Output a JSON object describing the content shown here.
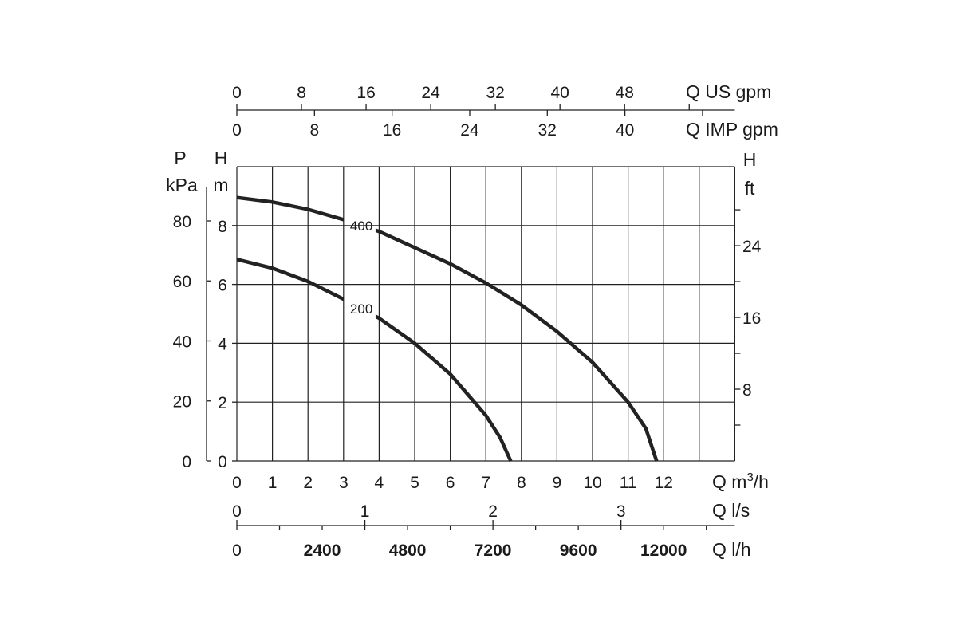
{
  "chart_data": {
    "type": "line",
    "title": "",
    "xlabel": "Q m3/h",
    "xlim": [
      0,
      14
    ],
    "ylim": [
      0,
      10
    ],
    "grid": true,
    "x_ticks": [
      0,
      1,
      2,
      3,
      4,
      5,
      6,
      7,
      8,
      9,
      10,
      11,
      12
    ],
    "y_ticks_m": [
      0,
      2,
      4,
      6,
      8
    ],
    "y_label_m": [
      "H",
      "m"
    ],
    "y_label_kpa": [
      "P",
      "kPa"
    ],
    "y_ticks_kpa": [
      0,
      20,
      40,
      60,
      80
    ],
    "y_label_ft": [
      "H",
      "ft"
    ],
    "y_ticks_ft": [
      8,
      16,
      24
    ],
    "x_unit_label": "Q m",
    "x_unit_sup": "3",
    "x_unit_tail": "/h",
    "secondary_axes": {
      "us_gpm": {
        "label": "Q US gpm",
        "ticks": [
          0,
          8,
          16,
          24,
          32,
          40,
          48
        ]
      },
      "imp_gpm": {
        "label": "Q IMP gpm",
        "ticks": [
          0,
          8,
          16,
          24,
          32,
          40
        ]
      },
      "ls": {
        "label": "Q l/s",
        "ticks": [
          0,
          1,
          2,
          3
        ]
      },
      "lh": {
        "label": "Q l/h",
        "ticks": [
          0,
          2400,
          4800,
          7200,
          9600,
          12000
        ]
      }
    },
    "series": [
      {
        "name": "400",
        "x": [
          0,
          1,
          2,
          3,
          4,
          5,
          6,
          7,
          8,
          9,
          10,
          11,
          11.5,
          11.8
        ],
        "y": [
          8.95,
          8.8,
          8.55,
          8.2,
          7.8,
          7.25,
          6.7,
          6.05,
          5.3,
          4.4,
          3.35,
          2.0,
          1.1,
          0
        ]
      },
      {
        "name": "200",
        "x": [
          0,
          1,
          2,
          3,
          4,
          5,
          6,
          7,
          7.4,
          7.7
        ],
        "y": [
          6.85,
          6.55,
          6.1,
          5.5,
          4.85,
          4.0,
          2.95,
          1.55,
          0.8,
          0
        ]
      }
    ]
  }
}
